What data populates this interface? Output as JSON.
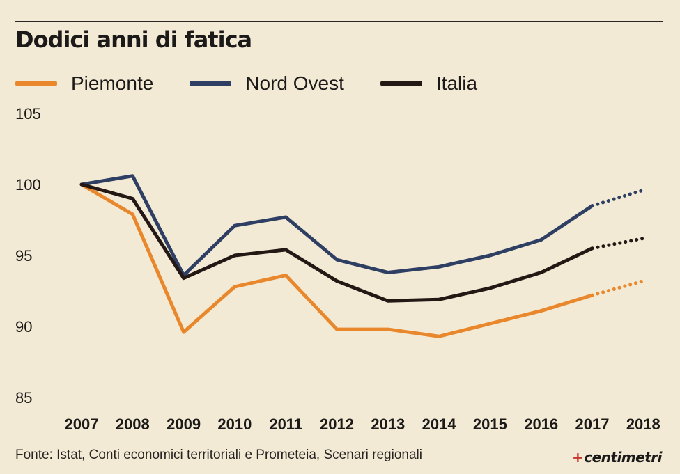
{
  "chart_data": {
    "type": "line",
    "title": "Dodici anni di fatica",
    "categories": [
      "2007",
      "2008",
      "2009",
      "2010",
      "2011",
      "2012",
      "2013",
      "2014",
      "2015",
      "2016",
      "2017",
      "2018"
    ],
    "ylim": [
      85,
      105
    ],
    "yticks": [
      85,
      90,
      95,
      100,
      105
    ],
    "grid": false,
    "legend_position": "top-left",
    "projection_from": "2017",
    "series": [
      {
        "name": "Piemonte",
        "color": "#e8872b",
        "values": [
          100,
          97.9,
          89.6,
          92.8,
          93.6,
          89.8,
          89.8,
          89.3,
          90.2,
          91.1,
          92.2,
          93.2
        ]
      },
      {
        "name": "Nord Ovest",
        "color": "#2e3f63",
        "values": [
          100,
          100.6,
          93.6,
          97.1,
          97.7,
          94.7,
          93.8,
          94.2,
          95.0,
          96.1,
          98.5,
          99.6
        ]
      },
      {
        "name": "Italia",
        "color": "#231814",
        "values": [
          100,
          99.0,
          93.4,
          95.0,
          95.4,
          93.2,
          91.8,
          91.9,
          92.7,
          93.8,
          95.5,
          96.2
        ]
      }
    ]
  },
  "source": "Fonte: Istat, Conti economici territoriali e Prometeia, Scenari regionali",
  "brand": {
    "mark": "+",
    "name": "centimetri"
  }
}
